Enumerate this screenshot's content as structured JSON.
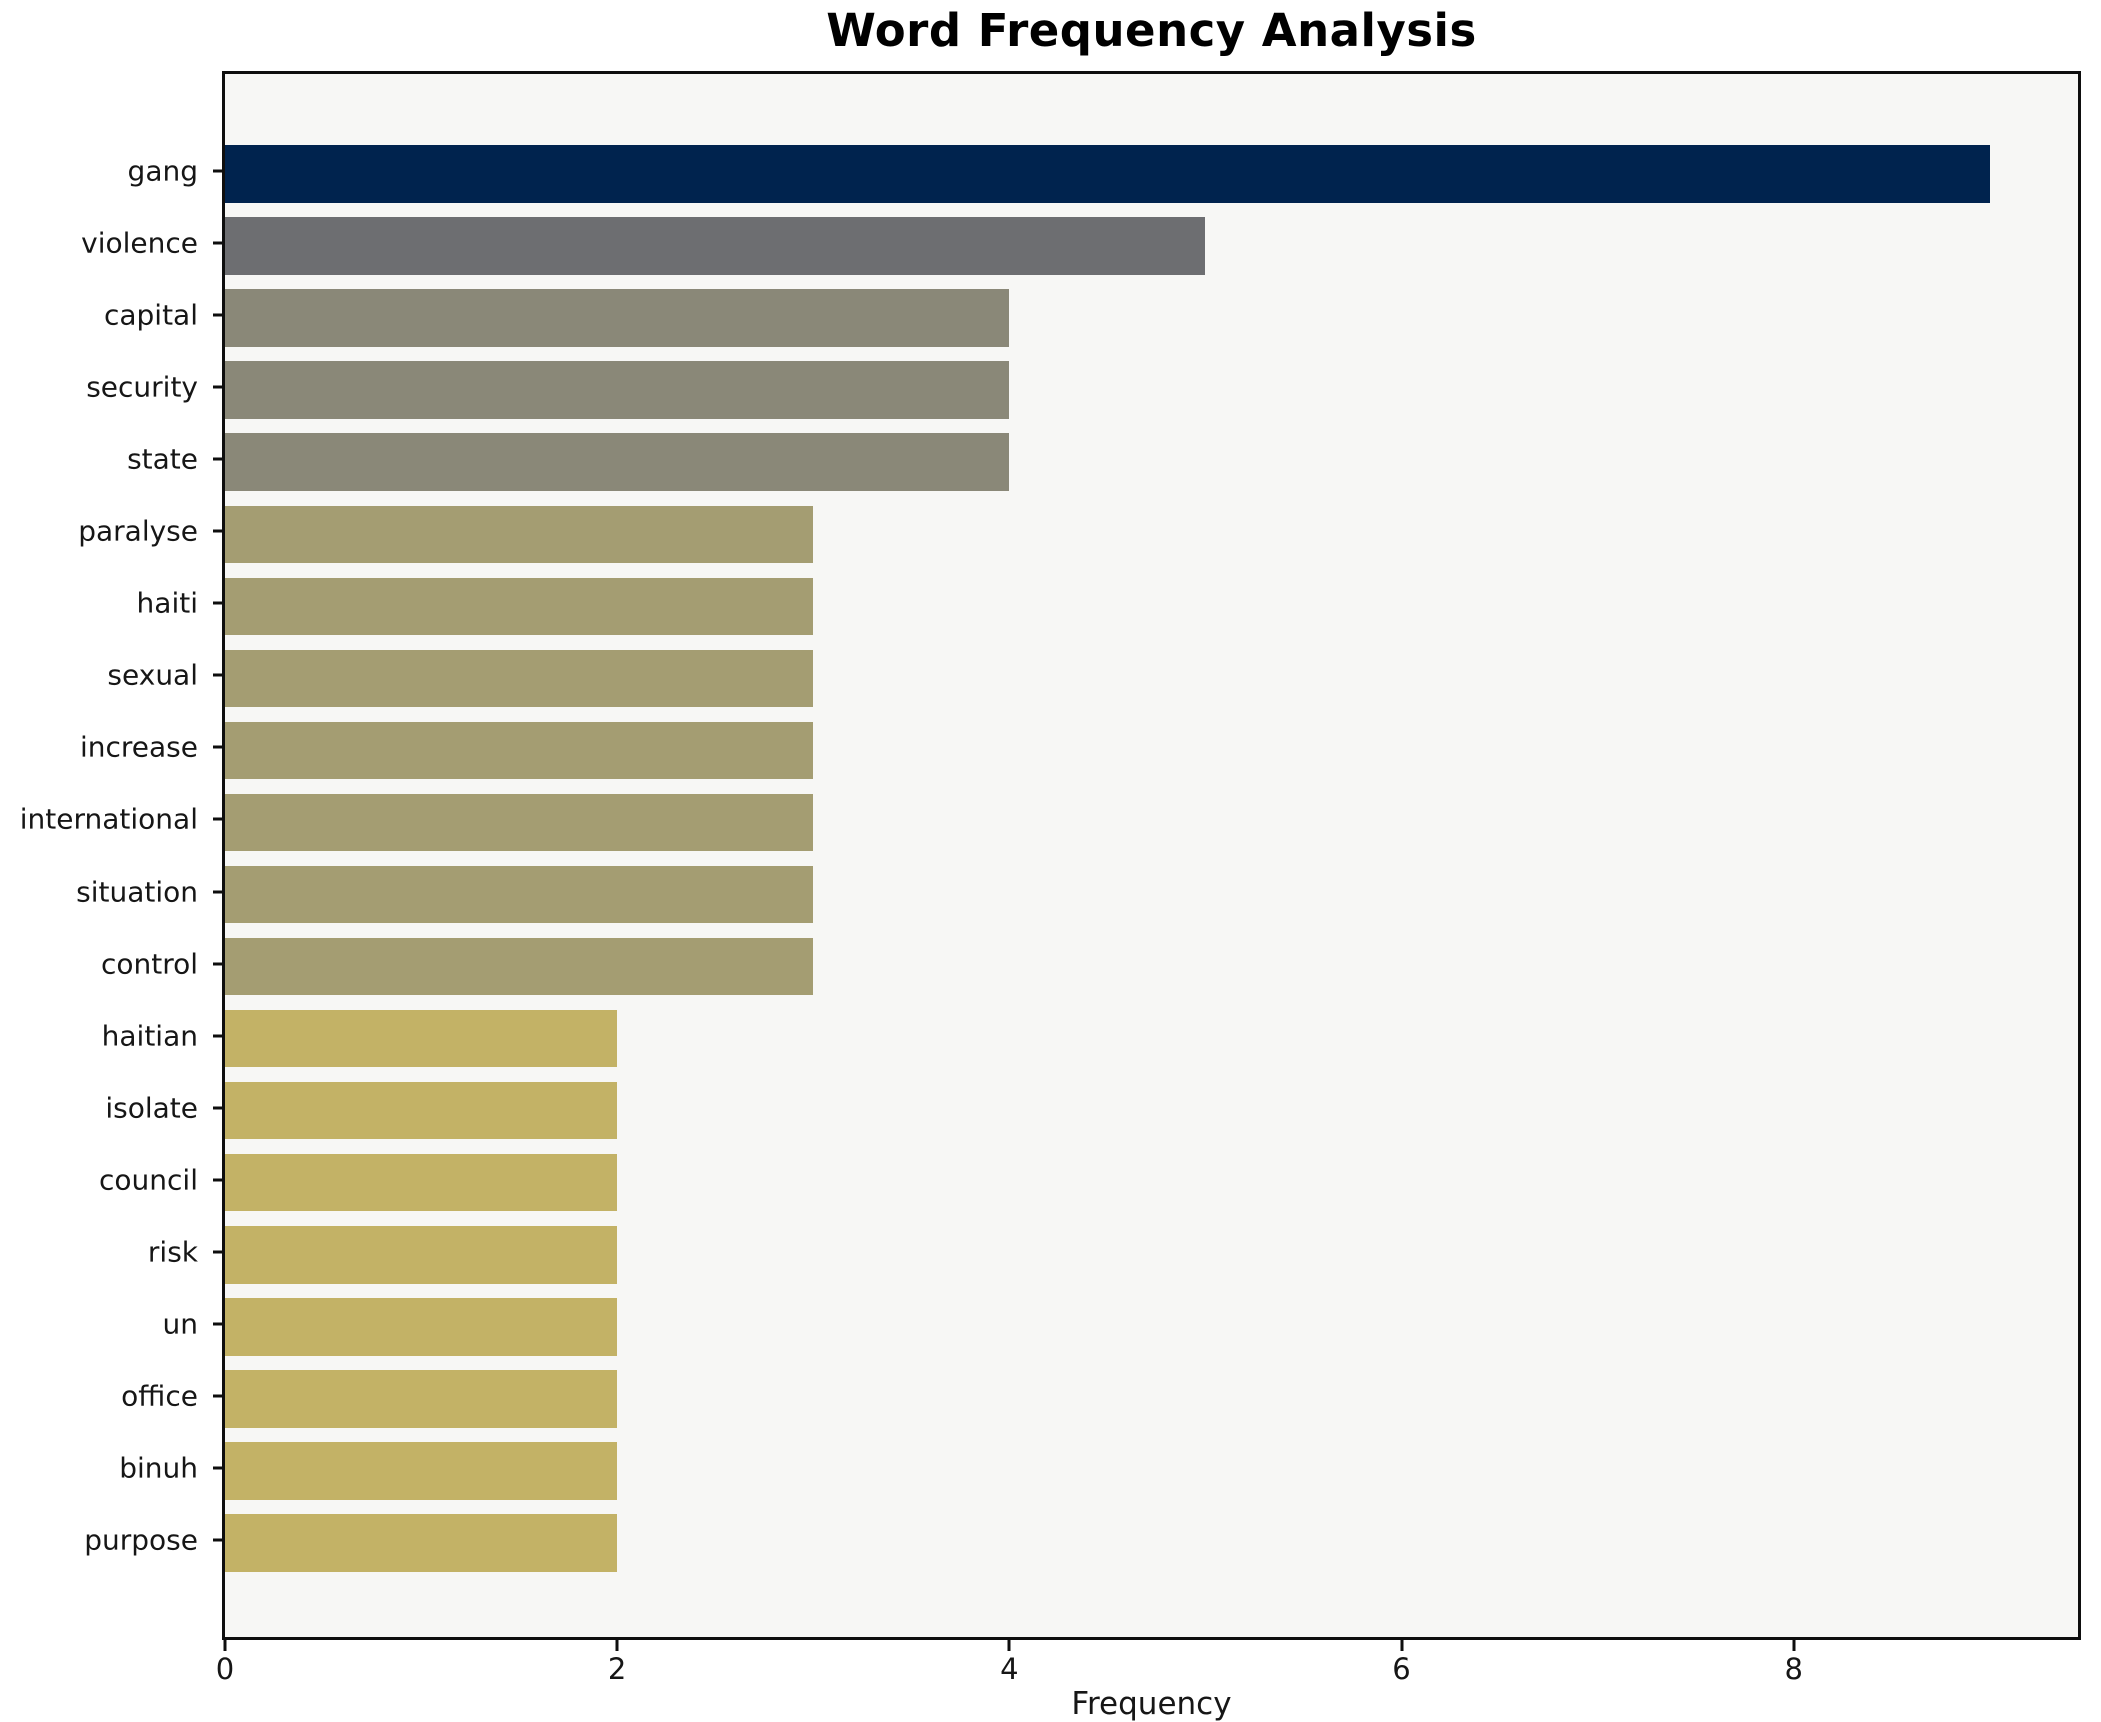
{
  "title": "Word Frequency Analysis",
  "chart_data": {
    "type": "bar",
    "orientation": "horizontal",
    "title": "Word Frequency Analysis",
    "xlabel": "Frequency",
    "ylabel": "",
    "categories": [
      "gang",
      "violence",
      "capital",
      "security",
      "state",
      "paralyse",
      "haiti",
      "sexual",
      "increase",
      "international",
      "situation",
      "control",
      "haitian",
      "isolate",
      "council",
      "risk",
      "un",
      "office",
      "binuh",
      "purpose"
    ],
    "values": [
      9,
      5,
      4,
      4,
      4,
      3,
      3,
      3,
      3,
      3,
      3,
      3,
      2,
      2,
      2,
      2,
      2,
      2,
      2,
      2
    ],
    "bar_colors": [
      "#00234e",
      "#6d6e71",
      "#8a8878",
      "#8a8878",
      "#8a8878",
      "#a49d72",
      "#a49d72",
      "#a49d72",
      "#a49d72",
      "#a49d72",
      "#a49d72",
      "#a49d72",
      "#c3b266",
      "#c3b266",
      "#c3b266",
      "#c3b266",
      "#c3b266",
      "#c3b266",
      "#c3b266",
      "#c3b266"
    ],
    "value_color_map": {
      "9": "#00234e",
      "5": "#6d6e71",
      "4": "#8a8878",
      "3": "#a49d72",
      "2": "#c3b266"
    },
    "xticks": [
      0,
      2,
      4,
      6,
      8
    ],
    "xlim": [
      0,
      9.45
    ],
    "grid": false,
    "legend_position": "none",
    "plot_background": "#f7f7f5",
    "figure_background": "#ffffff",
    "spine_color": "#0e0e0e",
    "bar_thickness_fraction": 0.8,
    "categorical_margin_units": 0.99
  }
}
